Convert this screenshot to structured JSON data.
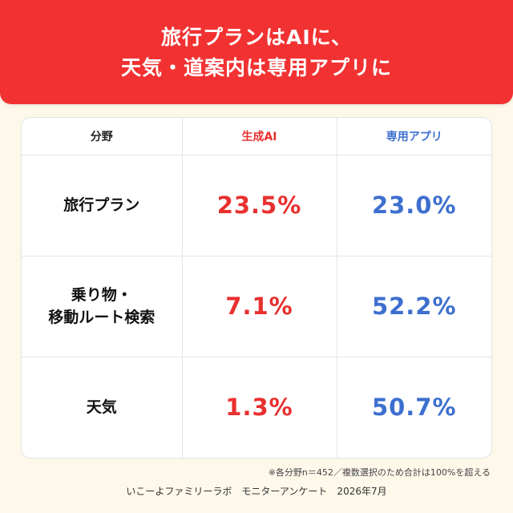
{
  "header": {
    "line1": "旅行プランはAIに、",
    "line2": "天気・道案内は専用アプリに"
  },
  "colors": {
    "header_bg": "#f23232",
    "generative_ai": "#e8302f",
    "dedicated_app": "#3d6fcf",
    "page_bg": "#fdf8ea"
  },
  "chart_data": {
    "type": "table",
    "columns": [
      "分野",
      "生成AI",
      "専用アプリ"
    ],
    "rows": [
      {
        "label": "旅行プラン",
        "generative_ai": "23.5%",
        "dedicated_app": "23.0%"
      },
      {
        "label": "乗り物・\n移動ルート検索",
        "generative_ai": "7.1%",
        "dedicated_app": "52.2%"
      },
      {
        "label": "天気",
        "generative_ai": "1.3%",
        "dedicated_app": "50.7%"
      }
    ],
    "series": [
      {
        "name": "生成AI",
        "values": [
          23.5,
          7.1,
          1.3
        ]
      },
      {
        "name": "専用アプリ",
        "values": [
          23.0,
          52.2,
          50.7
        ]
      }
    ],
    "categories": [
      "旅行プラン",
      "乗り物・移動ルート検索",
      "天気"
    ]
  },
  "footer": {
    "note": "※各分野n＝452／複数選択のため合計は100%を超える",
    "source": "いこーよファミリーラボ　モニターアンケート　2026年7月"
  }
}
